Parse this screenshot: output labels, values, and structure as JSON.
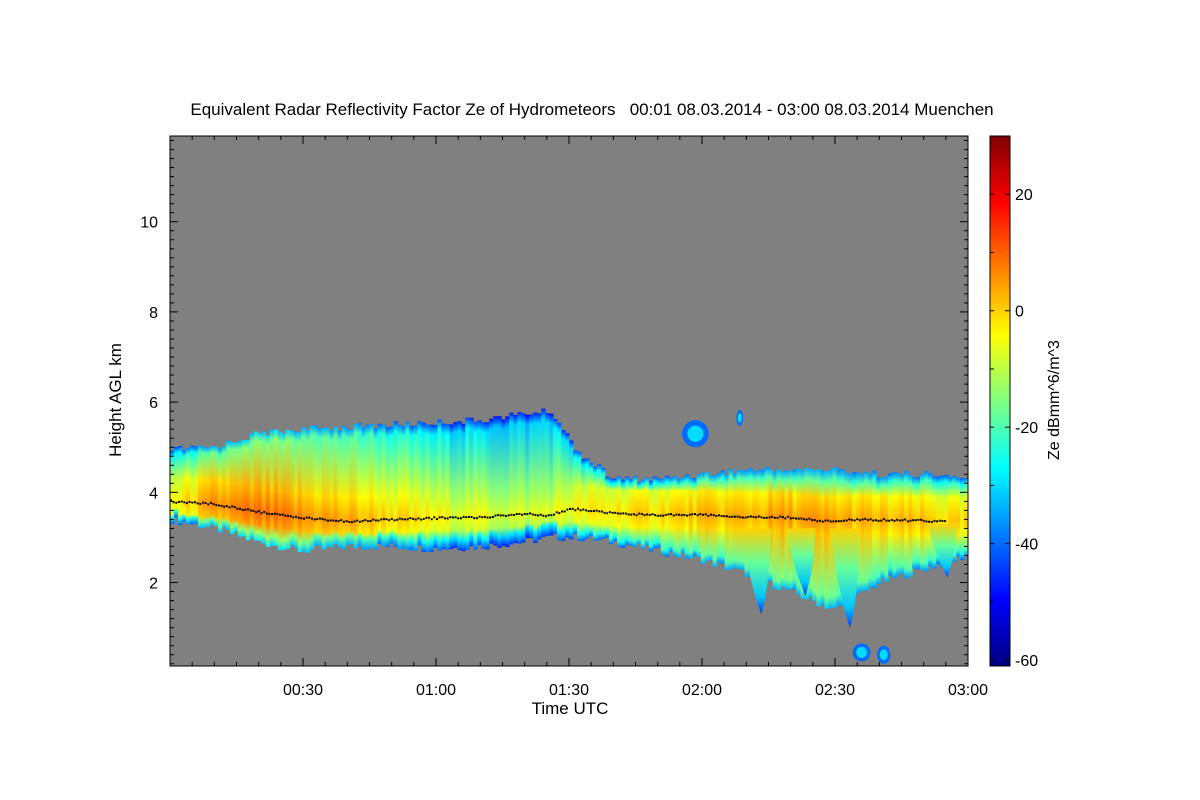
{
  "chart_data": {
    "type": "heatmap",
    "title": "Equivalent Radar Reflectivity Factor Ze of Hydrometeors   00:01 08.03.2014 - 03:00 08.03.2014 Muenchen",
    "xlabel": "Time UTC",
    "ylabel": "Height AGL km",
    "x_unit": "minutes after 00:00 UTC",
    "xlim": [
      0,
      180
    ],
    "ylim": [
      0.15,
      11.9
    ],
    "xticks": [
      {
        "value": 30,
        "label": "00:30"
      },
      {
        "value": 60,
        "label": "01:00"
      },
      {
        "value": 90,
        "label": "01:30"
      },
      {
        "value": 120,
        "label": "02:00"
      },
      {
        "value": 150,
        "label": "02:30"
      },
      {
        "value": 180,
        "label": "03:00"
      }
    ],
    "yticks": [
      {
        "value": 2,
        "label": "2"
      },
      {
        "value": 4,
        "label": "4"
      },
      {
        "value": 6,
        "label": "6"
      },
      {
        "value": 8,
        "label": "8"
      },
      {
        "value": 10,
        "label": "10"
      }
    ],
    "no_data_color": "#808080",
    "colorbar": {
      "label": "Ze dBmm^6/m^3",
      "range": [
        -61,
        30
      ],
      "ticks": [
        {
          "value": -60,
          "label": "-60"
        },
        {
          "value": -40,
          "label": "-40"
        },
        {
          "value": -20,
          "label": "-20"
        },
        {
          "value": 0,
          "label": "0"
        },
        {
          "value": 20,
          "label": "20"
        }
      ],
      "colors": [
        "#00007f",
        "#0000ff",
        "#0080ff",
        "#00ffff",
        "#80ff80",
        "#ffff00",
        "#ff8000",
        "#ff0000",
        "#7f0000"
      ]
    },
    "echo_bands": [
      {
        "t": 0,
        "bottom": 3.4,
        "top": 4.95,
        "core": -5
      },
      {
        "t": 10,
        "bottom": 3.2,
        "top": 5.0,
        "core": 5
      },
      {
        "t": 20,
        "bottom": 2.9,
        "top": 5.3,
        "core": 8
      },
      {
        "t": 30,
        "bottom": 2.7,
        "top": 5.4,
        "core": 6
      },
      {
        "t": 40,
        "bottom": 2.8,
        "top": 5.45,
        "core": 4
      },
      {
        "t": 50,
        "bottom": 2.8,
        "top": 5.5,
        "core": 0
      },
      {
        "t": 60,
        "bottom": 2.75,
        "top": 5.55,
        "core": -4
      },
      {
        "t": 70,
        "bottom": 2.8,
        "top": 5.6,
        "core": -6
      },
      {
        "t": 80,
        "bottom": 2.9,
        "top": 5.75,
        "core": -8
      },
      {
        "t": 86,
        "bottom": 3.0,
        "top": 5.8,
        "core": -6
      },
      {
        "t": 92,
        "bottom": 3.0,
        "top": 4.9,
        "core": -4
      },
      {
        "t": 100,
        "bottom": 2.9,
        "top": 4.3,
        "core": -2
      },
      {
        "t": 110,
        "bottom": 2.7,
        "top": 4.3,
        "core": 0
      },
      {
        "t": 120,
        "bottom": 2.5,
        "top": 4.4,
        "core": 2
      },
      {
        "t": 130,
        "bottom": 2.2,
        "top": 4.5,
        "core": 3
      },
      {
        "t": 140,
        "bottom": 1.8,
        "top": 4.5,
        "core": 5
      },
      {
        "t": 150,
        "bottom": 1.4,
        "top": 4.5,
        "core": 4
      },
      {
        "t": 160,
        "bottom": 2.0,
        "top": 4.4,
        "core": 2
      },
      {
        "t": 170,
        "bottom": 2.3,
        "top": 4.4,
        "core": 1
      },
      {
        "t": 180,
        "bottom": 2.6,
        "top": 4.3,
        "core": -2
      }
    ],
    "isolated_echoes": [
      {
        "t": 118.5,
        "h": 5.3,
        "w": 6,
        "d": 0.6
      },
      {
        "t": 128.5,
        "h": 5.65,
        "w": 1.5,
        "d": 0.35
      },
      {
        "t": 156,
        "h": 0.45,
        "w": 4,
        "d": 0.4
      },
      {
        "t": 161,
        "h": 0.4,
        "w": 3,
        "d": 0.4
      }
    ],
    "fall_streaks": [
      {
        "t": 132,
        "top": 3.2,
        "bottom": 1.3
      },
      {
        "t": 142,
        "top": 3.2,
        "bottom": 1.7
      },
      {
        "t": 152,
        "top": 3.2,
        "bottom": 1.0
      },
      {
        "t": 174,
        "top": 3.3,
        "bottom": 2.1
      }
    ],
    "melting_layer": [
      {
        "t": 0,
        "h": 3.82
      },
      {
        "t": 10,
        "h": 3.76
      },
      {
        "t": 20,
        "h": 3.58
      },
      {
        "t": 30,
        "h": 3.45
      },
      {
        "t": 40,
        "h": 3.38
      },
      {
        "t": 50,
        "h": 3.42
      },
      {
        "t": 60,
        "h": 3.45
      },
      {
        "t": 70,
        "h": 3.47
      },
      {
        "t": 80,
        "h": 3.55
      },
      {
        "t": 85,
        "h": 3.5
      },
      {
        "t": 90,
        "h": 3.65
      },
      {
        "t": 95,
        "h": 3.62
      },
      {
        "t": 100,
        "h": 3.55
      },
      {
        "t": 110,
        "h": 3.52
      },
      {
        "t": 120,
        "h": 3.52
      },
      {
        "t": 130,
        "h": 3.48
      },
      {
        "t": 140,
        "h": 3.46
      },
      {
        "t": 148,
        "h": 3.38
      },
      {
        "t": 155,
        "h": 3.42
      },
      {
        "t": 165,
        "h": 3.4
      },
      {
        "t": 175,
        "h": 3.38
      }
    ]
  }
}
